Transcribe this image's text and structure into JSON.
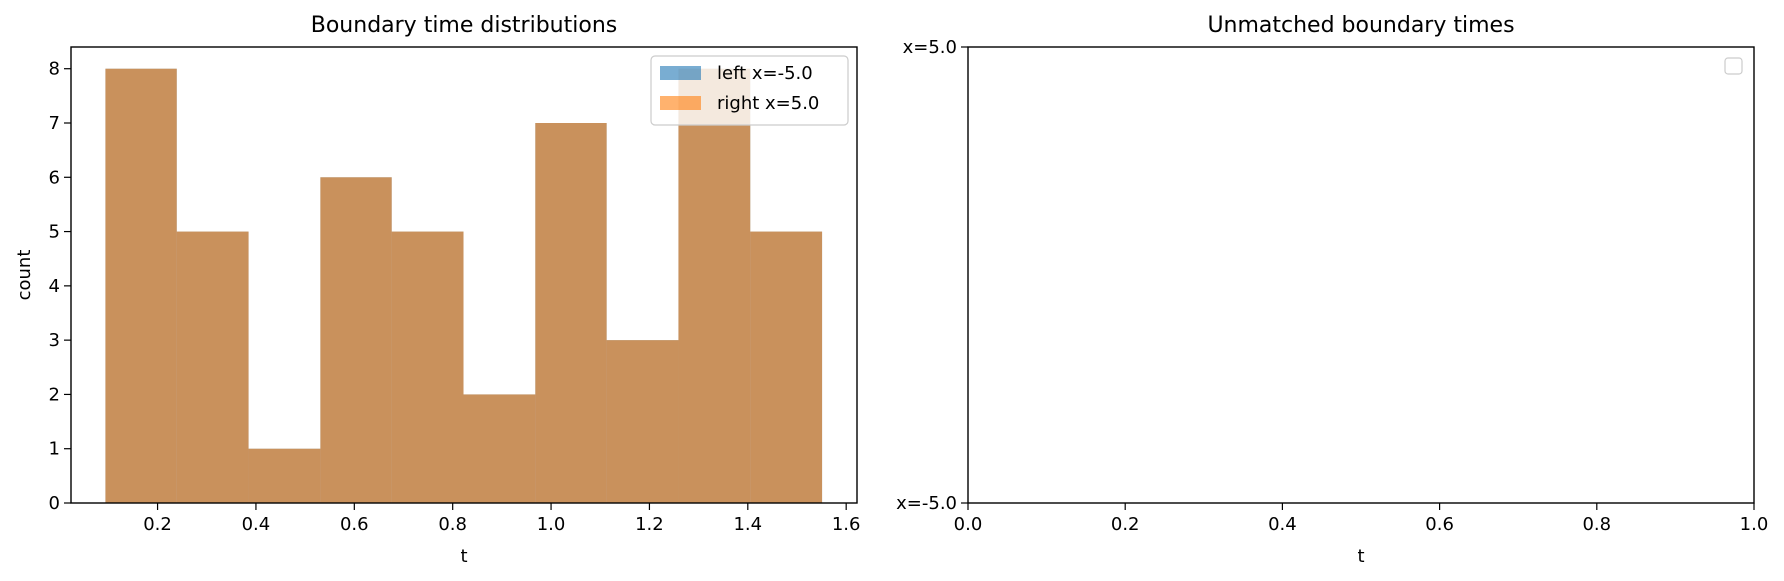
{
  "colors": {
    "left": "#1f77b4",
    "right": "#ff7f0e",
    "overlap": "#c8915b",
    "axes": "#000000",
    "background": "#ffffff"
  },
  "chart_data": [
    {
      "type": "bar",
      "subtype": "histogram-overlay",
      "title": "Boundary time distributions",
      "xlabel": "t",
      "ylabel": "count",
      "xlim": [
        0.024,
        1.622
      ],
      "ylim": [
        0,
        8.4
      ],
      "xticks": [
        0.2,
        0.4,
        0.6,
        0.8,
        1.0,
        1.2,
        1.4,
        1.6
      ],
      "xtick_labels": [
        "0.2",
        "0.4",
        "0.6",
        "0.8",
        "1.0",
        "1.2",
        "1.4",
        "1.6"
      ],
      "yticks": [
        0,
        1,
        2,
        3,
        4,
        5,
        6,
        7,
        8
      ],
      "ytick_labels": [
        "0",
        "1",
        "2",
        "3",
        "4",
        "5",
        "6",
        "7",
        "8"
      ],
      "bin_edges": [
        0.094,
        0.239,
        0.385,
        0.531,
        0.676,
        0.822,
        0.968,
        1.113,
        1.259,
        1.405,
        1.551
      ],
      "series": [
        {
          "name": "left x=-5.0",
          "color": "#1f77b4",
          "opacity": 0.6,
          "values": [
            8,
            5,
            1,
            6,
            5,
            2,
            7,
            3,
            8,
            5
          ]
        },
        {
          "name": "right x=5.0",
          "color": "#ff7f0e",
          "opacity": 0.6,
          "values": [
            8,
            5,
            1,
            6,
            5,
            2,
            7,
            3,
            8,
            5
          ]
        }
      ],
      "legend": {
        "placement": "upper-right",
        "entries": [
          "left x=-5.0",
          "right x=5.0"
        ]
      },
      "grid": false
    },
    {
      "type": "scatter",
      "title": "Unmatched boundary times",
      "xlabel": "t",
      "ylabel": "",
      "xlim": [
        0.0,
        1.0
      ],
      "ylim": [
        0,
        1
      ],
      "xticks": [
        0.0,
        0.2,
        0.4,
        0.6,
        0.8,
        1.0
      ],
      "xtick_labels": [
        "0.0",
        "0.2",
        "0.4",
        "0.6",
        "0.8",
        "1.0"
      ],
      "yticks": [
        0,
        1
      ],
      "ytick_labels": [
        "x=-5.0",
        "x=5.0"
      ],
      "series": [],
      "legend": {
        "placement": "upper-right",
        "entries": []
      },
      "grid": false
    }
  ]
}
